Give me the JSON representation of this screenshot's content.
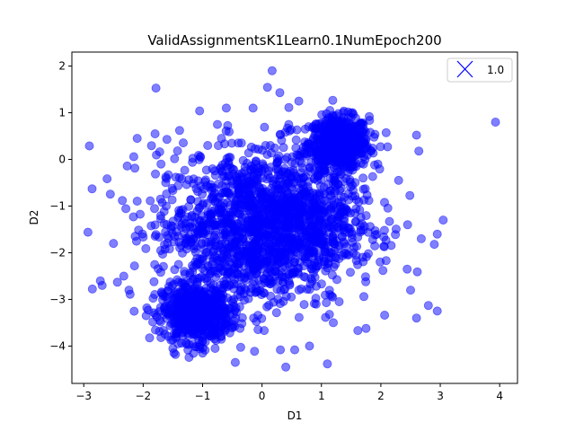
{
  "chart_data": {
    "type": "scatter",
    "title": "ValidAssignmentsK1Learn0.1NumEpoch200",
    "xlabel": "D1",
    "ylabel": "D2",
    "xlim": [
      -3.2,
      4.3
    ],
    "ylim": [
      -4.8,
      2.3
    ],
    "xticks": [
      -3,
      -2,
      -1,
      0,
      1,
      2,
      3,
      4
    ],
    "xtick_labels": [
      "−3",
      "−2",
      "−1",
      "0",
      "1",
      "2",
      "3",
      "4"
    ],
    "yticks": [
      2,
      1,
      0,
      -1,
      -2,
      -3,
      -4
    ],
    "ytick_labels": [
      "2",
      "1",
      "0",
      "−1",
      "−2",
      "−3",
      "−4"
    ],
    "grid": false,
    "legend": {
      "position": "top-right",
      "entries": [
        {
          "label": "1.0",
          "marker": "x",
          "color": "#0000ff"
        }
      ]
    },
    "series": [
      {
        "color": "#0000ff",
        "opacity": 0.5,
        "marker": "circle",
        "points": [
          [
            0.17,
            1.9
          ],
          [
            0.3,
            1.43
          ],
          [
            0.62,
            1.25
          ],
          [
            3.93,
            0.8
          ],
          [
            2.6,
            0.52
          ],
          [
            2.64,
            0.18
          ],
          [
            -2.86,
            -0.63
          ],
          [
            -2.93,
            -1.56
          ],
          [
            -2.72,
            -2.6
          ],
          [
            -2.69,
            -2.7
          ],
          [
            -2.5,
            -1.8
          ],
          [
            -2.35,
            -0.88
          ],
          [
            -2.22,
            -2.89
          ],
          [
            -1.95,
            -3.35
          ],
          [
            -1.05,
            1.04
          ],
          [
            -0.6,
            1.1
          ],
          [
            -0.15,
            1.1
          ],
          [
            -1.6,
            0.43
          ],
          [
            -1.8,
            0.55
          ],
          [
            -0.75,
            0.75
          ],
          [
            0.45,
            0.75
          ],
          [
            2.95,
            -1.6
          ],
          [
            3.05,
            -1.3
          ],
          [
            2.68,
            -1.7
          ],
          [
            2.9,
            -1.82
          ],
          [
            2.45,
            -1.4
          ],
          [
            2.5,
            -2.8
          ],
          [
            2.8,
            -3.13
          ],
          [
            2.95,
            -3.25
          ],
          [
            2.6,
            -3.4
          ],
          [
            1.75,
            -3.62
          ],
          [
            1.2,
            -3.5
          ],
          [
            0.4,
            -4.45
          ],
          [
            0.55,
            -4.08
          ],
          [
            1.1,
            -4.38
          ],
          [
            0.8,
            -4.0
          ],
          [
            -0.45,
            -4.35
          ],
          [
            -1.0,
            -4.15
          ],
          [
            -1.5,
            -4.05
          ],
          [
            1.5,
            0.9
          ],
          [
            -2.1,
            0.45
          ],
          [
            -1.7,
            -0.1
          ],
          [
            -0.4,
            0.35
          ],
          [
            0.9,
            0.6
          ],
          [
            2.3,
            -0.45
          ],
          [
            1.95,
            -0.1
          ],
          [
            1.7,
            -0.4
          ]
        ],
        "clusters": [
          {
            "center": [
              1.3,
              0.35
            ],
            "spread": [
              0.25,
              0.28
            ],
            "count": 650
          },
          {
            "center": [
              -1.1,
              -3.3
            ],
            "spread": [
              0.28,
              0.3
            ],
            "count": 650
          },
          {
            "center": [
              -0.2,
              -1.5
            ],
            "spread": [
              0.8,
              0.85
            ],
            "count": 1300
          },
          {
            "center": [
              0.7,
              -1.2
            ],
            "spread": [
              0.6,
              0.7
            ],
            "count": 500
          }
        ]
      }
    ]
  }
}
